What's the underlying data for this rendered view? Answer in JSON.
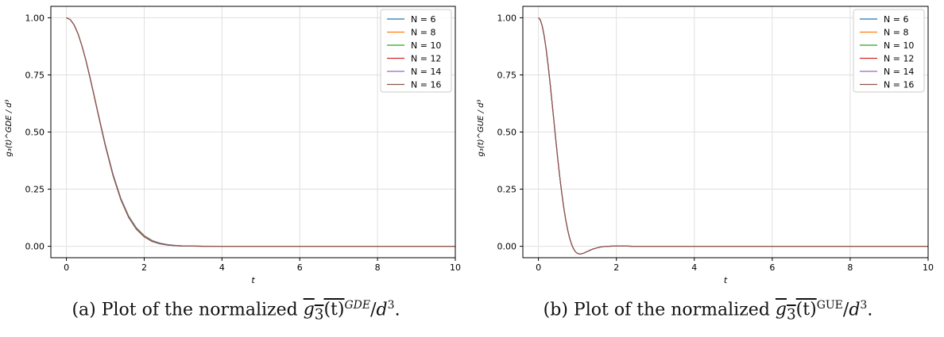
{
  "chart_data": [
    {
      "type": "line",
      "panel": "a",
      "xlabel": "t",
      "ylabel": "g₃(t)^GDE / d³",
      "xlim": [
        -0.4,
        10
      ],
      "ylim": [
        -0.05,
        1.05
      ],
      "xticks": [
        0,
        2,
        4,
        6,
        8,
        10
      ],
      "yticks": [
        0.0,
        0.25,
        0.5,
        0.75,
        1.0
      ],
      "ytick_labels": [
        "0.00",
        "0.25",
        "0.50",
        "0.75",
        "1.00"
      ],
      "grid": true,
      "legend_position": "top-right",
      "x": [
        0,
        0.1,
        0.2,
        0.3,
        0.4,
        0.5,
        0.6,
        0.7,
        0.8,
        0.9,
        1.0,
        1.2,
        1.4,
        1.6,
        1.8,
        2.0,
        2.2,
        2.4,
        2.6,
        2.8,
        3.0,
        3.5,
        4.0,
        5.0,
        6.0,
        7.0,
        8.0,
        9.0,
        10.0
      ],
      "series": [
        {
          "name": "N = 6",
          "color": "#1f77b4",
          "values": [
            1.0,
            0.992,
            0.968,
            0.93,
            0.878,
            0.816,
            0.745,
            0.671,
            0.595,
            0.52,
            0.446,
            0.315,
            0.21,
            0.133,
            0.081,
            0.047,
            0.026,
            0.014,
            0.0075,
            0.004,
            0.0021,
            0.0004,
            0.0001,
            0,
            0,
            0,
            0,
            0,
            0
          ]
        },
        {
          "name": "N = 8",
          "color": "#ff7f0e",
          "values": [
            1.0,
            0.992,
            0.968,
            0.929,
            0.877,
            0.815,
            0.744,
            0.669,
            0.593,
            0.517,
            0.443,
            0.312,
            0.207,
            0.13,
            0.078,
            0.045,
            0.024,
            0.0125,
            0.0063,
            0.0031,
            0.0015,
            0.0002,
            0,
            0,
            0,
            0,
            0,
            0,
            0
          ]
        },
        {
          "name": "N = 10",
          "color": "#2ca02c",
          "values": [
            1.0,
            0.992,
            0.968,
            0.929,
            0.877,
            0.814,
            0.743,
            0.668,
            0.592,
            0.516,
            0.442,
            0.31,
            0.205,
            0.128,
            0.076,
            0.043,
            0.023,
            0.0118,
            0.0058,
            0.0028,
            0.0013,
            0.0002,
            0,
            0,
            0,
            0,
            0,
            0,
            0
          ]
        },
        {
          "name": "N = 12",
          "color": "#d62728",
          "values": [
            1.0,
            0.992,
            0.968,
            0.929,
            0.877,
            0.814,
            0.743,
            0.668,
            0.591,
            0.515,
            0.441,
            0.309,
            0.204,
            0.127,
            0.075,
            0.042,
            0.022,
            0.0112,
            0.0055,
            0.0026,
            0.0012,
            0.0001,
            0,
            0,
            0,
            0,
            0,
            0,
            0
          ]
        },
        {
          "name": "N = 14",
          "color": "#9467bd",
          "values": [
            1.0,
            0.992,
            0.968,
            0.929,
            0.876,
            0.814,
            0.742,
            0.667,
            0.591,
            0.515,
            0.44,
            0.309,
            0.204,
            0.127,
            0.075,
            0.042,
            0.022,
            0.011,
            0.0054,
            0.0025,
            0.0011,
            0.0001,
            0,
            0,
            0,
            0,
            0,
            0,
            0
          ]
        },
        {
          "name": "N = 16",
          "color": "#8c564b",
          "values": [
            1.0,
            0.992,
            0.968,
            0.929,
            0.876,
            0.814,
            0.742,
            0.667,
            0.59,
            0.514,
            0.44,
            0.308,
            0.203,
            0.126,
            0.074,
            0.041,
            0.021,
            0.0108,
            0.0052,
            0.0024,
            0.0011,
            0.0001,
            0,
            0,
            0,
            0,
            0,
            0,
            0
          ]
        }
      ]
    },
    {
      "type": "line",
      "panel": "b",
      "xlabel": "t",
      "ylabel": "g₃(t)^GUE / d³",
      "xlim": [
        -0.4,
        10
      ],
      "ylim": [
        -0.05,
        1.05
      ],
      "xticks": [
        0,
        2,
        4,
        6,
        8,
        10
      ],
      "yticks": [
        0.0,
        0.25,
        0.5,
        0.75,
        1.0
      ],
      "ytick_labels": [
        "0.00",
        "0.25",
        "0.50",
        "0.75",
        "1.00"
      ],
      "grid": true,
      "legend_position": "top-right",
      "x": [
        0,
        0.05,
        0.1,
        0.15,
        0.2,
        0.25,
        0.3,
        0.35,
        0.4,
        0.45,
        0.5,
        0.55,
        0.6,
        0.65,
        0.7,
        0.75,
        0.8,
        0.85,
        0.9,
        0.95,
        1.0,
        1.05,
        1.1,
        1.15,
        1.2,
        1.3,
        1.4,
        1.5,
        1.6,
        1.7,
        1.8,
        2.0,
        2.2,
        2.4,
        2.6,
        3.0,
        4.0,
        5.0,
        6.0,
        7.0,
        8.0,
        9.0,
        10.0
      ],
      "series": [
        {
          "name": "N = 6",
          "color": "#1f77b4",
          "values": [
            1.0,
            0.99,
            0.962,
            0.918,
            0.86,
            0.79,
            0.712,
            0.628,
            0.543,
            0.458,
            0.376,
            0.3,
            0.231,
            0.169,
            0.116,
            0.072,
            0.036,
            0.009,
            -0.011,
            -0.024,
            -0.031,
            -0.034,
            -0.033,
            -0.031,
            -0.027,
            -0.019,
            -0.012,
            -0.007,
            -0.003,
            -0.001,
            0.0,
            0.001,
            0.001,
            0.0,
            0.0,
            0.0,
            0,
            0,
            0,
            0,
            0,
            0,
            0
          ]
        },
        {
          "name": "N = 8",
          "color": "#ff7f0e",
          "values": [
            1.0,
            0.99,
            0.962,
            0.918,
            0.86,
            0.79,
            0.712,
            0.628,
            0.543,
            0.458,
            0.376,
            0.3,
            0.231,
            0.169,
            0.116,
            0.072,
            0.036,
            0.009,
            -0.011,
            -0.024,
            -0.031,
            -0.034,
            -0.033,
            -0.031,
            -0.027,
            -0.019,
            -0.012,
            -0.007,
            -0.003,
            -0.001,
            0.0,
            0.001,
            0.001,
            0.0,
            0.0,
            0.0,
            0,
            0,
            0,
            0,
            0,
            0,
            0
          ]
        },
        {
          "name": "N = 10",
          "color": "#2ca02c",
          "values": [
            1.0,
            0.99,
            0.962,
            0.918,
            0.86,
            0.79,
            0.712,
            0.628,
            0.543,
            0.458,
            0.376,
            0.3,
            0.231,
            0.169,
            0.116,
            0.072,
            0.036,
            0.009,
            -0.011,
            -0.024,
            -0.031,
            -0.034,
            -0.033,
            -0.031,
            -0.027,
            -0.019,
            -0.012,
            -0.007,
            -0.003,
            -0.001,
            0.0,
            0.001,
            0.001,
            0.0,
            0.0,
            0.0,
            0,
            0,
            0,
            0,
            0,
            0,
            0
          ]
        },
        {
          "name": "N = 12",
          "color": "#d62728",
          "values": [
            1.0,
            0.99,
            0.962,
            0.918,
            0.86,
            0.79,
            0.712,
            0.628,
            0.543,
            0.458,
            0.376,
            0.3,
            0.231,
            0.169,
            0.116,
            0.072,
            0.036,
            0.009,
            -0.011,
            -0.024,
            -0.031,
            -0.034,
            -0.033,
            -0.031,
            -0.027,
            -0.019,
            -0.012,
            -0.007,
            -0.003,
            -0.001,
            0.0,
            0.001,
            0.001,
            0.0,
            0.0,
            0.0,
            0,
            0,
            0,
            0,
            0,
            0,
            0
          ]
        },
        {
          "name": "N = 14",
          "color": "#9467bd",
          "values": [
            1.0,
            0.99,
            0.962,
            0.918,
            0.86,
            0.79,
            0.712,
            0.628,
            0.543,
            0.458,
            0.376,
            0.3,
            0.231,
            0.169,
            0.116,
            0.072,
            0.036,
            0.009,
            -0.011,
            -0.024,
            -0.031,
            -0.034,
            -0.033,
            -0.031,
            -0.027,
            -0.019,
            -0.012,
            -0.007,
            -0.003,
            -0.001,
            0.0,
            0.001,
            0.001,
            0.0,
            0.0,
            0.0,
            0,
            0,
            0,
            0,
            0,
            0,
            0
          ]
        },
        {
          "name": "N = 16",
          "color": "#8c564b",
          "values": [
            1.0,
            0.99,
            0.962,
            0.918,
            0.86,
            0.79,
            0.712,
            0.628,
            0.543,
            0.458,
            0.376,
            0.3,
            0.231,
            0.169,
            0.116,
            0.072,
            0.036,
            0.009,
            -0.011,
            -0.024,
            -0.031,
            -0.034,
            -0.033,
            -0.031,
            -0.027,
            -0.019,
            -0.012,
            -0.007,
            -0.003,
            -0.001,
            0.0,
            0.001,
            0.001,
            0.0,
            0.0,
            0.0,
            0,
            0,
            0,
            0,
            0,
            0,
            0
          ]
        }
      ]
    }
  ],
  "captions": {
    "a_prefix": "(a) Plot of the normalized ",
    "a_base": "g",
    "a_sub": "3",
    "a_arg": "(t)",
    "a_sup": "GDE",
    "a_rest": "/",
    "a_d": "d",
    "a_dexp": "3",
    "a_end": ".",
    "b_prefix": "(b) Plot of the normalized ",
    "b_base": "g",
    "b_sub": "3",
    "b_arg": "(t)",
    "b_sup": "GUE",
    "b_rest": "/",
    "b_d": "d",
    "b_dexp": "3",
    "b_end": "."
  }
}
